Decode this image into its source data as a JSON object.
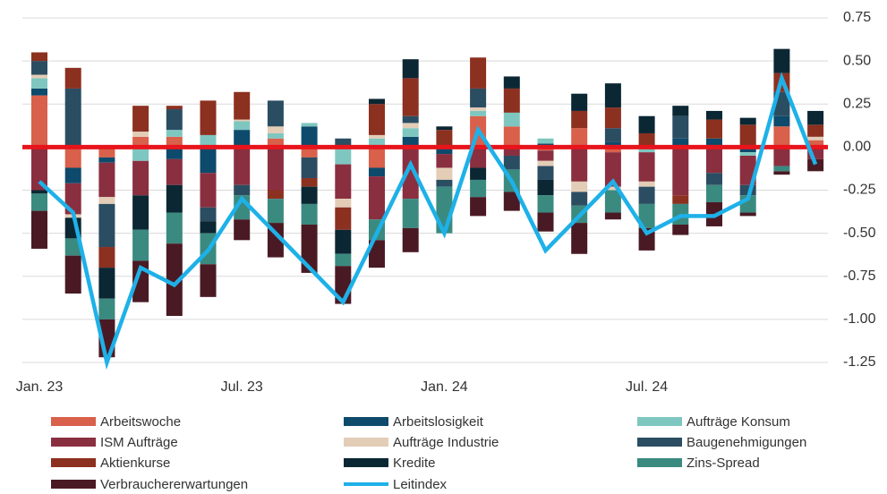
{
  "chart_data": {
    "type": "bar",
    "stacked": true,
    "categories": [
      "Jan. 23",
      null,
      null,
      null,
      null,
      null,
      "Jul. 23",
      null,
      null,
      null,
      null,
      null,
      "Jan. 24",
      null,
      null,
      null,
      null,
      null,
      "Jul. 24",
      null,
      null,
      null,
      null,
      null
    ],
    "ylim": [
      -1.25,
      0.75
    ],
    "yticks": [
      0.75,
      {
        "value": 0.5,
        "label": "0.50"
      },
      0.25,
      {
        "value": 0,
        "label": "0.00"
      },
      -0.25,
      {
        "value": -0.5,
        "label": "-0.50"
      },
      -0.75,
      {
        "value": -1,
        "label": "-1.00"
      },
      -1.25
    ],
    "grid": true,
    "series": [
      {
        "name": "Arbeitswoche",
        "color": "#d9604a",
        "values": [
          0.3,
          -0.12,
          -0.06,
          0.06,
          0.06,
          0,
          0,
          0.05,
          -0.06,
          0,
          -0.12,
          0,
          0,
          0.18,
          0.12,
          -0.02,
          0.11,
          -0.03,
          0,
          0,
          0,
          0,
          0.12,
          0.04
        ]
      },
      {
        "name": "Arbeitslosigkeit",
        "color": "#0d4a6b",
        "values": [
          0.04,
          -0.09,
          -0.03,
          0,
          -0.07,
          -0.15,
          0.1,
          0,
          0.12,
          0,
          -0.05,
          0.06,
          -0.04,
          0,
          0,
          0.02,
          0,
          0.03,
          0,
          0.05,
          0.05,
          -0.03,
          0.06,
          0
        ]
      },
      {
        "name": "Aufträge Konsum",
        "color": "#7ec7c0",
        "values": [
          0.06,
          0,
          0,
          -0.08,
          0.04,
          0.07,
          0.05,
          0.03,
          0.02,
          -0.1,
          0.05,
          0.05,
          0,
          0.03,
          0.08,
          0.03,
          0,
          0,
          -0.03,
          0,
          0,
          -0.02,
          0,
          0
        ]
      },
      {
        "name": "ISM Aufträge",
        "color": "#8a2f40",
        "values": [
          -0.25,
          -0.18,
          -0.2,
          -0.2,
          -0.15,
          -0.2,
          -0.22,
          -0.25,
          0,
          -0.2,
          -0.25,
          -0.3,
          -0.08,
          -0.12,
          -0.05,
          -0.06,
          -0.2,
          -0.2,
          -0.17,
          -0.28,
          -0.15,
          -0.17,
          -0.11,
          -0.07
        ]
      },
      {
        "name": "Aufträge Industrie",
        "color": "#e3cdb7",
        "values": [
          0.02,
          -0.02,
          -0.04,
          0.03,
          0,
          0,
          0.01,
          0.04,
          0,
          -0.05,
          0.02,
          0.03,
          -0.07,
          0.02,
          0,
          -0.03,
          -0.06,
          -0.02,
          -0.03,
          0,
          0,
          0,
          0,
          0.02
        ]
      },
      {
        "name": "Baugenehmigungen",
        "color": "#2b4d62",
        "values": [
          0.08,
          0.34,
          -0.25,
          0,
          0.12,
          -0.08,
          -0.06,
          0.15,
          -0.12,
          0.05,
          0,
          0.04,
          -0.04,
          0.11,
          -0.08,
          -0.08,
          -0.08,
          0.08,
          -0.1,
          0.13,
          -0.07,
          -0.06,
          0.14,
          0
        ]
      },
      {
        "name": "Aktienkurse",
        "color": "#8c3020",
        "values": [
          0.05,
          0.12,
          -0.12,
          0.15,
          0.02,
          0.2,
          0.16,
          -0.05,
          -0.05,
          -0.13,
          0.18,
          0.22,
          0.1,
          0.18,
          0.14,
          0,
          0.1,
          0.12,
          0.08,
          -0.05,
          0.11,
          0.13,
          0.11,
          0.07
        ]
      },
      {
        "name": "Kredite",
        "color": "#0b2733",
        "values": [
          -0.02,
          -0.12,
          -0.18,
          -0.2,
          -0.16,
          -0.07,
          0,
          0,
          -0.1,
          -0.14,
          0.03,
          0.11,
          0.02,
          -0.07,
          0.07,
          -0.09,
          0.1,
          0.14,
          0.1,
          0.06,
          0.05,
          0.04,
          0.14,
          0.08
        ]
      },
      {
        "name": "Zins-Spread",
        "color": "#3a8a80",
        "values": [
          -0.1,
          -0.1,
          -0.12,
          -0.18,
          -0.18,
          -0.18,
          -0.14,
          -0.14,
          -0.12,
          -0.07,
          -0.12,
          -0.17,
          -0.27,
          -0.1,
          -0.13,
          -0.1,
          -0.1,
          -0.13,
          -0.14,
          -0.12,
          -0.1,
          -0.1,
          -0.03,
          0
        ]
      },
      {
        "name": "Verbrauchererwartungen",
        "color": "#4a1a24",
        "values": [
          -0.22,
          -0.22,
          -0.22,
          -0.24,
          -0.42,
          -0.19,
          -0.12,
          -0.2,
          -0.28,
          -0.22,
          -0.16,
          -0.14,
          0,
          -0.11,
          -0.11,
          -0.11,
          -0.18,
          -0.04,
          -0.13,
          -0.06,
          -0.14,
          -0.02,
          -0.02,
          -0.07
        ]
      },
      {
        "name": "Leitindex",
        "type": "line",
        "color": "#1eb1e8",
        "values": [
          -0.2,
          -0.38,
          -1.25,
          -0.7,
          -0.8,
          -0.6,
          -0.3,
          -0.5,
          -0.7,
          -0.9,
          -0.5,
          -0.1,
          -0.5,
          0.1,
          -0.2,
          -0.6,
          -0.4,
          -0.2,
          -0.5,
          -0.4,
          -0.4,
          -0.3,
          0.4,
          -0.1
        ]
      }
    ],
    "reference_line_color": "#e8141c"
  }
}
